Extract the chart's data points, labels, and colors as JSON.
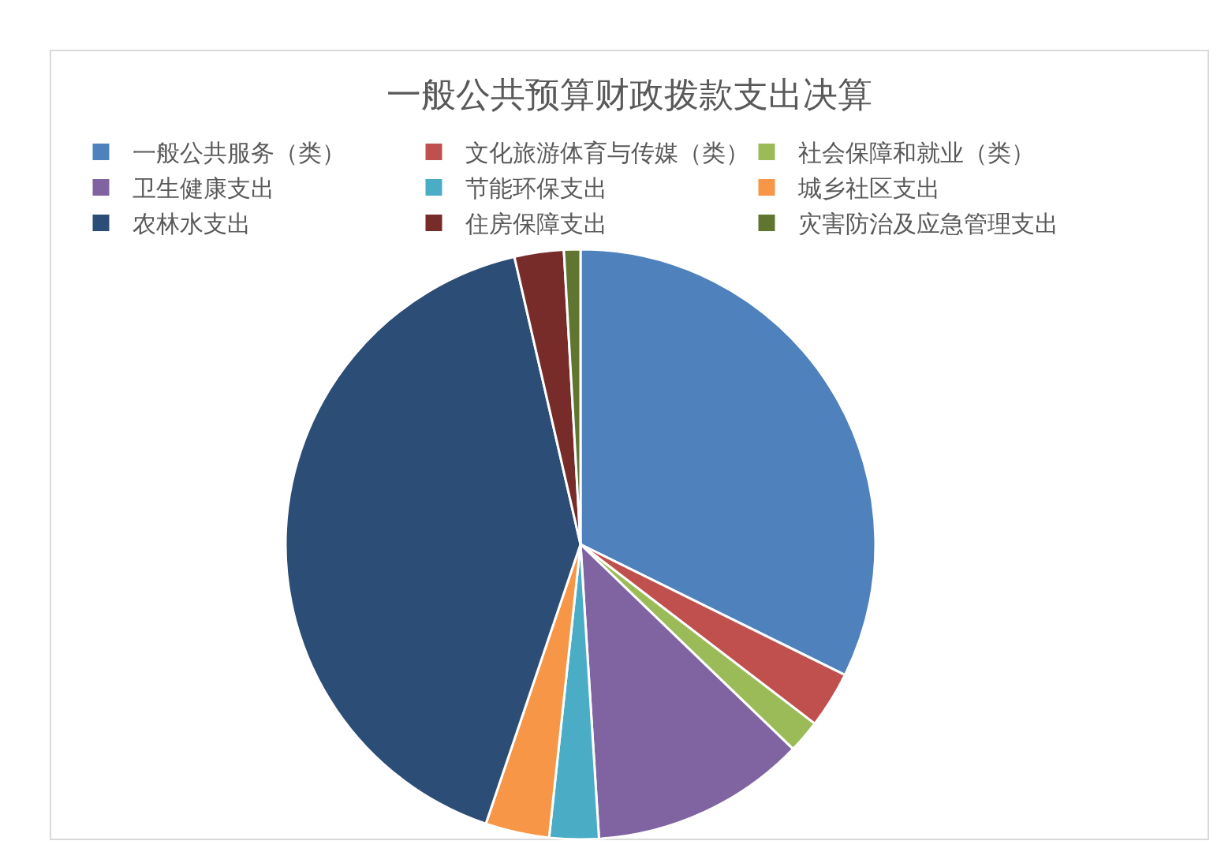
{
  "chart_data": {
    "type": "pie",
    "title": "一般公共预算财政拨款支出决算",
    "categories": [
      "一般公共服务（类）",
      "文化旅游体育与传媒（类）",
      "社会保障和就业（类）",
      "卫生健康支出",
      "节能环保支出",
      "城乡社区支出",
      "农林水支出",
      "住房保障支出",
      "灾害防治及应急管理支出"
    ],
    "values": [
      32.3,
      3.1,
      1.8,
      11.8,
      2.7,
      3.5,
      41.2,
      2.7,
      0.9
    ],
    "colors": [
      "#4f81bd",
      "#c0504d",
      "#9bbb59",
      "#8064a2",
      "#4bacc6",
      "#f79646",
      "#2c4d75",
      "#772c2a",
      "#5f7530"
    ],
    "legend": "top"
  }
}
